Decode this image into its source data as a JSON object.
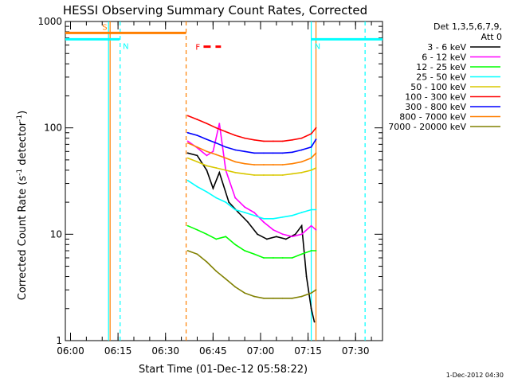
{
  "chart_data": {
    "type": "line",
    "title": "HESSI Observing Summary Count Rates, Corrected",
    "xlabel": "Start Time (01-Dec-12 05:58:22)",
    "ylabel": "Corrected Count Rate (s⁻¹ detector⁻¹)",
    "ylabel_parts": [
      "Corrected Count Rate (s",
      "-1",
      " detector",
      "-1",
      ")"
    ],
    "y_scale": "log",
    "ylim": [
      1,
      1000
    ],
    "y_ticks": [
      1,
      10,
      100,
      1000
    ],
    "y_tick_labels": [
      "1",
      "10",
      "100",
      "1000"
    ],
    "xlim": [
      "05:58:22",
      "07:38:30"
    ],
    "x_ticks": [
      "06:00",
      "06:15",
      "06:30",
      "06:45",
      "07:00",
      "07:15",
      "07:30"
    ],
    "legend_header": [
      "Det 1,3,5,6,7,9,",
      "Att 0"
    ],
    "legend_position": "top-right, outside plot",
    "footer": "1-Dec-2012 04:30",
    "flags": [
      {
        "label": "S",
        "color": "#ff7f00",
        "start": "05:58:22",
        "end": "06:36:30",
        "level": 780
      },
      {
        "label": "N",
        "color": "#00ffff",
        "start": "05:58:22",
        "end": "06:15:30",
        "level": 680
      },
      {
        "label": "N",
        "color": "#00ffff",
        "start": "07:16:00",
        "end": "07:38:30",
        "level": 680
      },
      {
        "label": "F",
        "color": "#ff0000",
        "start": "06:42:00",
        "end": "06:47:30",
        "level": 580,
        "dashed": true
      }
    ],
    "markers": [
      {
        "time": "06:12:00",
        "color": "#00ffff",
        "style": "solid"
      },
      {
        "time": "06:12:30",
        "color": "#ff7f00",
        "style": "solid"
      },
      {
        "time": "06:15:40",
        "color": "#00ffff",
        "style": "dashed"
      },
      {
        "time": "06:36:30",
        "color": "#ff7f00",
        "style": "dashed"
      },
      {
        "time": "07:16:00",
        "color": "#00ffff",
        "style": "solid"
      },
      {
        "time": "07:17:30",
        "color": "#ff7f00",
        "style": "solid"
      },
      {
        "time": "07:33:00",
        "color": "#00ffff",
        "style": "dashed"
      }
    ],
    "series": [
      {
        "name": "3 - 6 keV",
        "color": "#000000",
        "x": [
          "06:37:00",
          "06:40:00",
          "06:43:00",
          "06:45:00",
          "06:47:00",
          "06:50:00",
          "06:53:00",
          "06:56:00",
          "06:59:00",
          "07:02:00",
          "07:05:00",
          "07:08:00",
          "07:11:00",
          "07:13:00",
          "07:14:30",
          "07:16:00",
          "07:17:00"
        ],
        "y": [
          58,
          55,
          40,
          27,
          38,
          20,
          16,
          13,
          10,
          9,
          9.5,
          9,
          10,
          12,
          4,
          2,
          1.5
        ]
      },
      {
        "name": "6 - 12 keV",
        "color": "#ff00ff",
        "x": [
          "06:37:00",
          "06:40:00",
          "06:43:00",
          "06:45:00",
          "06:47:00",
          "06:49:00",
          "06:52:00",
          "06:55:00",
          "06:58:00",
          "07:01:00",
          "07:04:00",
          "07:07:00",
          "07:10:00",
          "07:13:00",
          "07:16:00",
          "07:17:30"
        ],
        "y": [
          75,
          65,
          55,
          60,
          110,
          40,
          22,
          18,
          16,
          13,
          11,
          10,
          9.5,
          10,
          12,
          11
        ]
      },
      {
        "name": "12 - 25 keV",
        "color": "#00ff00",
        "x": [
          "06:37:00",
          "06:40:00",
          "06:43:00",
          "06:46:00",
          "06:49:00",
          "06:52:00",
          "06:55:00",
          "06:58:00",
          "07:01:00",
          "07:04:00",
          "07:07:00",
          "07:10:00",
          "07:13:00",
          "07:16:00",
          "07:17:30"
        ],
        "y": [
          12,
          11,
          10,
          9,
          9.5,
          8,
          7,
          6.5,
          6,
          6,
          6,
          6,
          6.5,
          7,
          7
        ]
      },
      {
        "name": "25 - 50 keV",
        "color": "#00ffff",
        "x": [
          "06:37:00",
          "06:40:00",
          "06:43:00",
          "06:46:00",
          "06:49:00",
          "06:52:00",
          "06:55:00",
          "06:58:00",
          "07:01:00",
          "07:04:00",
          "07:07:00",
          "07:10:00",
          "07:13:00",
          "07:16:00",
          "07:17:30"
        ],
        "y": [
          32,
          28,
          25,
          22,
          20,
          17,
          16,
          15,
          14,
          14,
          14.5,
          15,
          16,
          17,
          17
        ]
      },
      {
        "name": "50 - 100 keV",
        "color": "#d9c800",
        "x": [
          "06:37:00",
          "06:40:00",
          "06:43:00",
          "06:46:00",
          "06:49:00",
          "06:52:00",
          "06:55:00",
          "06:58:00",
          "07:01:00",
          "07:04:00",
          "07:07:00",
          "07:10:00",
          "07:13:00",
          "07:16:00",
          "07:17:30"
        ],
        "y": [
          52,
          48,
          44,
          42,
          40,
          38,
          37,
          36,
          36,
          36,
          36,
          37,
          38,
          40,
          42
        ]
      },
      {
        "name": "100 - 300 keV",
        "color": "#ff0000",
        "x": [
          "06:37:00",
          "06:40:00",
          "06:43:00",
          "06:46:00",
          "06:49:00",
          "06:52:00",
          "06:55:00",
          "06:58:00",
          "07:01:00",
          "07:04:00",
          "07:07:00",
          "07:10:00",
          "07:13:00",
          "07:16:00",
          "07:17:30"
        ],
        "y": [
          130,
          120,
          110,
          100,
          92,
          85,
          80,
          77,
          75,
          75,
          75,
          77,
          80,
          88,
          100
        ]
      },
      {
        "name": "300 - 800 keV",
        "color": "#0000ff",
        "x": [
          "06:37:00",
          "06:40:00",
          "06:43:00",
          "06:46:00",
          "06:49:00",
          "06:52:00",
          "06:55:00",
          "06:58:00",
          "07:01:00",
          "07:04:00",
          "07:07:00",
          "07:10:00",
          "07:13:00",
          "07:16:00",
          "07:17:30"
        ],
        "y": [
          90,
          85,
          78,
          72,
          66,
          62,
          60,
          58,
          58,
          58,
          58,
          59,
          62,
          66,
          78
        ]
      },
      {
        "name": "800 - 7000 keV",
        "color": "#ff7f00",
        "x": [
          "06:37:00",
          "06:40:00",
          "06:43:00",
          "06:46:00",
          "06:49:00",
          "06:52:00",
          "06:55:00",
          "06:58:00",
          "07:01:00",
          "07:04:00",
          "07:07:00",
          "07:10:00",
          "07:13:00",
          "07:16:00",
          "07:17:30"
        ],
        "y": [
          72,
          66,
          60,
          56,
          52,
          48,
          46,
          45,
          45,
          45,
          45,
          46,
          48,
          52,
          58
        ]
      },
      {
        "name": "7000 - 20000 keV",
        "color": "#808000",
        "x": [
          "06:37:00",
          "06:40:00",
          "06:43:00",
          "06:46:00",
          "06:49:00",
          "06:52:00",
          "06:55:00",
          "06:58:00",
          "07:01:00",
          "07:04:00",
          "07:07:00",
          "07:10:00",
          "07:13:00",
          "07:16:00",
          "07:17:30"
        ],
        "y": [
          7,
          6.5,
          5.5,
          4.5,
          3.8,
          3.2,
          2.8,
          2.6,
          2.5,
          2.5,
          2.5,
          2.5,
          2.6,
          2.8,
          3
        ]
      }
    ]
  }
}
